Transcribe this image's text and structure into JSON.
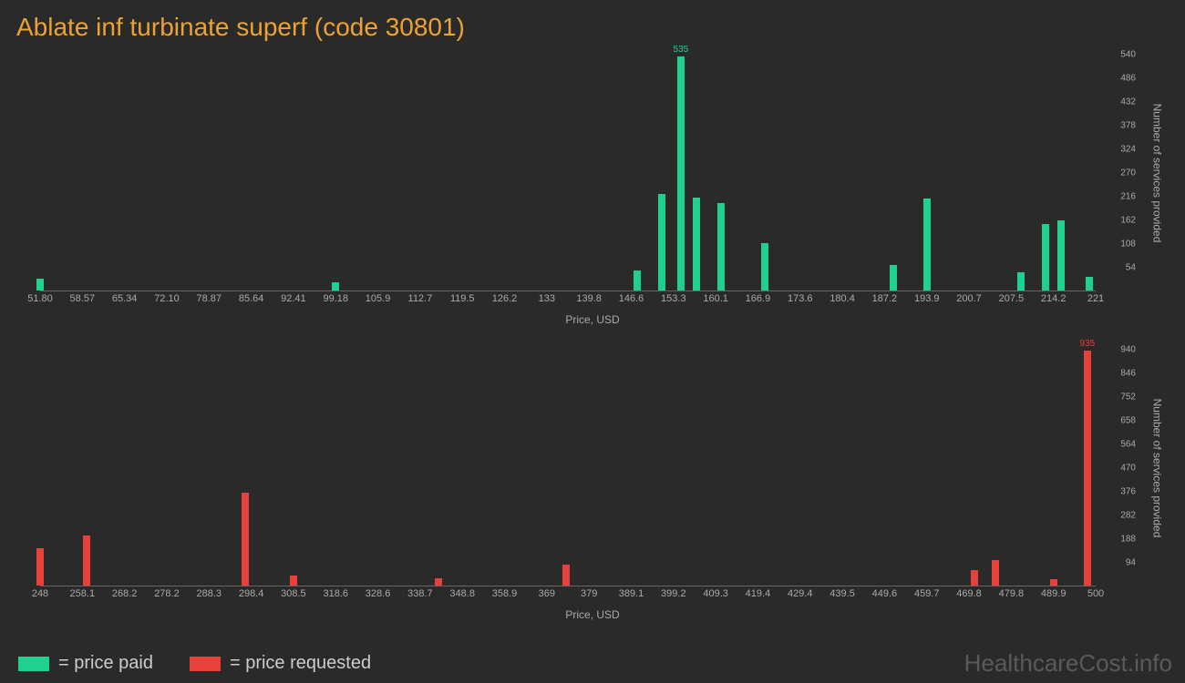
{
  "title": "Ablate inf turbinate superf (code 30801)",
  "colors": {
    "background": "#2a2a2a",
    "title": "#eba234",
    "axis_text": "#aaaaaa",
    "axis_line": "#666666",
    "paid": "#1fd18e",
    "requested": "#e8403a",
    "watermark": "#5a5a5a"
  },
  "watermark": "HealthcareCost.info",
  "legend": {
    "paid": "= price paid",
    "requested": "= price requested"
  },
  "chart_paid": {
    "type": "bar",
    "x_label": "Price, USD",
    "y_label": "Number of services provided",
    "x_min": 51.8,
    "x_max": 221.0,
    "y_max": 540,
    "y_ticks": [
      54,
      108,
      162,
      216,
      270,
      324,
      378,
      432,
      486,
      540
    ],
    "x_ticks": [
      "51.80",
      "58.57",
      "65.34",
      "72.10",
      "78.87",
      "85.64",
      "92.41",
      "99.18",
      "105.9",
      "112.7",
      "119.5",
      "126.2",
      "133",
      "139.8",
      "146.6",
      "153.3",
      "160.1",
      "166.9",
      "173.6",
      "180.4",
      "187.2",
      "193.9",
      "200.7",
      "207.5",
      "214.2",
      "221"
    ],
    "bars": [
      {
        "x": 51.8,
        "v": 28
      },
      {
        "x": 99.18,
        "v": 18
      },
      {
        "x": 147.5,
        "v": 45
      },
      {
        "x": 151.5,
        "v": 220
      },
      {
        "x": 154.5,
        "v": 535,
        "label": "535"
      },
      {
        "x": 157.0,
        "v": 212
      },
      {
        "x": 161.0,
        "v": 200
      },
      {
        "x": 168.0,
        "v": 108
      },
      {
        "x": 188.5,
        "v": 58
      },
      {
        "x": 193.9,
        "v": 210
      },
      {
        "x": 209.0,
        "v": 42
      },
      {
        "x": 213.0,
        "v": 152
      },
      {
        "x": 215.5,
        "v": 160
      },
      {
        "x": 220.0,
        "v": 32
      }
    ]
  },
  "chart_requested": {
    "type": "bar",
    "x_label": "Price, USD",
    "y_label": "Number of services provided",
    "x_min": 248.0,
    "x_max": 500.0,
    "y_max": 940,
    "y_ticks": [
      94,
      188,
      282,
      376,
      470,
      564,
      658,
      752,
      846,
      940
    ],
    "x_ticks": [
      "248",
      "258.1",
      "268.2",
      "278.2",
      "288.3",
      "298.4",
      "308.5",
      "318.6",
      "328.6",
      "338.7",
      "348.8",
      "358.9",
      "369",
      "379",
      "389.1",
      "399.2",
      "409.3",
      "419.4",
      "429.4",
      "439.5",
      "449.6",
      "459.7",
      "469.8",
      "479.8",
      "489.9",
      "500"
    ],
    "bars": [
      {
        "x": 248.0,
        "v": 150
      },
      {
        "x": 259.0,
        "v": 200
      },
      {
        "x": 297.0,
        "v": 370
      },
      {
        "x": 308.5,
        "v": 40
      },
      {
        "x": 343.0,
        "v": 30
      },
      {
        "x": 373.5,
        "v": 85
      },
      {
        "x": 471.0,
        "v": 60
      },
      {
        "x": 476.0,
        "v": 100
      },
      {
        "x": 490.0,
        "v": 25
      },
      {
        "x": 498.0,
        "v": 935,
        "label": "935"
      }
    ]
  }
}
